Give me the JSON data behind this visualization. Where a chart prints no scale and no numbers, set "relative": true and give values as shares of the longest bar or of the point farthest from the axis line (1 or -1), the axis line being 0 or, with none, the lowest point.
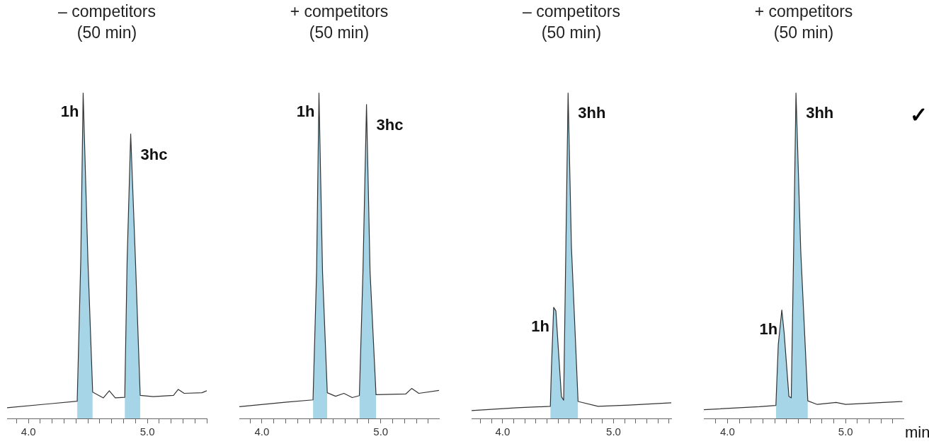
{
  "chart_data": [
    {
      "type": "line",
      "title": "– competitors",
      "subtitle": "(50 min)",
      "relative": true,
      "xlim": [
        3.82,
        5.5
      ],
      "xticks": [
        {
          "value": 3.9,
          "label": null
        },
        {
          "value": 4.0,
          "label": "4.0"
        },
        {
          "value": 4.1,
          "label": null
        },
        {
          "value": 4.2,
          "label": null
        },
        {
          "value": 4.3,
          "label": null
        },
        {
          "value": 4.4,
          "label": null
        },
        {
          "value": 4.5,
          "label": null
        },
        {
          "value": 4.6,
          "label": null
        },
        {
          "value": 4.7,
          "label": null
        },
        {
          "value": 4.8,
          "label": null
        },
        {
          "value": 4.9,
          "label": null
        },
        {
          "value": 5.0,
          "label": "5.0"
        },
        {
          "value": 5.1,
          "label": null
        },
        {
          "value": 5.2,
          "label": null
        },
        {
          "value": 5.3,
          "label": null
        },
        {
          "value": 5.4,
          "label": null
        },
        {
          "value": 5.5,
          "label": null
        }
      ],
      "series": [
        {
          "type": "line",
          "color": "#333333",
          "x": [
            3.82,
            4.18,
            4.41,
            4.44,
            4.46,
            4.5,
            4.54,
            4.63,
            4.68,
            4.73,
            4.81,
            4.83,
            4.86,
            4.9,
            4.94,
            5.05,
            5.22,
            5.26,
            5.31,
            5.46,
            5.5
          ],
          "values": [
            0.033,
            0.045,
            0.053,
            0.486,
            1.0,
            0.486,
            0.081,
            0.063,
            0.085,
            0.063,
            0.065,
            0.485,
            0.873,
            0.485,
            0.071,
            0.067,
            0.071,
            0.089,
            0.077,
            0.079,
            0.085
          ]
        },
        {
          "type": "area",
          "color": "#a6d5e8",
          "x": [
            4.41,
            4.44,
            4.46,
            4.5,
            4.54,
            4.63,
            4.81,
            4.83,
            4.86,
            4.9,
            4.94
          ],
          "values": [
            0.053,
            0.486,
            1.0,
            0.486,
            0.081,
            null,
            0.065,
            0.485,
            0.873,
            0.485,
            0.071
          ]
        }
      ],
      "annotations": [
        {
          "text": "1h",
          "x": 4.46,
          "y": 1.0
        },
        {
          "text": "3hc",
          "x": 4.86,
          "y": 0.873
        }
      ]
    },
    {
      "type": "line",
      "title": "+ competitors",
      "subtitle": "(50 min)",
      "relative": true,
      "xlim": [
        3.81,
        5.49
      ],
      "xticks": [
        {
          "value": 3.9,
          "label": null
        },
        {
          "value": 4.0,
          "label": "4.0"
        },
        {
          "value": 4.1,
          "label": null
        },
        {
          "value": 4.2,
          "label": null
        },
        {
          "value": 4.3,
          "label": null
        },
        {
          "value": 4.4,
          "label": null
        },
        {
          "value": 4.5,
          "label": null
        },
        {
          "value": 4.6,
          "label": null
        },
        {
          "value": 4.7,
          "label": null
        },
        {
          "value": 4.8,
          "label": null
        },
        {
          "value": 4.9,
          "label": null
        },
        {
          "value": 5.0,
          "label": "5.0"
        },
        {
          "value": 5.1,
          "label": null
        },
        {
          "value": 5.2,
          "label": null
        },
        {
          "value": 5.3,
          "label": null
        },
        {
          "value": 5.4,
          "label": null
        }
      ],
      "series": [
        {
          "type": "line",
          "color": "#333333",
          "x": [
            3.81,
            4.21,
            4.43,
            4.46,
            4.48,
            4.51,
            4.55,
            4.62,
            4.69,
            4.76,
            4.82,
            4.85,
            4.88,
            4.91,
            4.96,
            5.21,
            5.26,
            5.32,
            5.49
          ],
          "values": [
            0.036,
            0.05,
            0.057,
            0.45,
            1.0,
            0.45,
            0.079,
            0.068,
            0.077,
            0.064,
            0.07,
            0.45,
            0.964,
            0.45,
            0.073,
            0.075,
            0.092,
            0.077,
            0.086
          ]
        },
        {
          "type": "area",
          "color": "#a6d5e8",
          "x": [
            4.43,
            4.46,
            4.48,
            4.51,
            4.55,
            4.62,
            4.82,
            4.85,
            4.88,
            4.91,
            4.96
          ],
          "values": [
            0.057,
            0.45,
            1.0,
            0.45,
            0.079,
            null,
            0.07,
            0.45,
            0.964,
            0.45,
            0.073
          ]
        }
      ],
      "annotations": [
        {
          "text": "1h",
          "x": 4.48,
          "y": 1.0
        },
        {
          "text": "3hc",
          "x": 4.88,
          "y": 0.964
        }
      ]
    },
    {
      "type": "line",
      "title": "– competitors",
      "subtitle": "(50 min)",
      "relative": true,
      "xlim": [
        3.72,
        5.52
      ],
      "xticks": [
        {
          "value": 3.8,
          "label": null
        },
        {
          "value": 3.9,
          "label": null
        },
        {
          "value": 4.0,
          "label": "4.0"
        },
        {
          "value": 4.1,
          "label": null
        },
        {
          "value": 4.2,
          "label": null
        },
        {
          "value": 4.3,
          "label": null
        },
        {
          "value": 4.4,
          "label": null
        },
        {
          "value": 4.5,
          "label": null
        },
        {
          "value": 4.6,
          "label": null
        },
        {
          "value": 4.7,
          "label": null
        },
        {
          "value": 4.8,
          "label": null
        },
        {
          "value": 4.9,
          "label": null
        },
        {
          "value": 5.0,
          "label": "5.0"
        },
        {
          "value": 5.1,
          "label": null
        },
        {
          "value": 5.2,
          "label": null
        },
        {
          "value": 5.3,
          "label": null
        },
        {
          "value": 5.4,
          "label": null
        },
        {
          "value": 5.5,
          "label": null
        }
      ],
      "series": [
        {
          "type": "line",
          "color": "#333333",
          "x": [
            3.72,
            4.13,
            4.43,
            4.44,
            4.46,
            4.48,
            4.53,
            4.55,
            4.57,
            4.59,
            4.62,
            4.68,
            4.86,
            5.14,
            5.52
          ],
          "values": [
            0.024,
            0.033,
            0.037,
            0.156,
            0.341,
            0.33,
            0.067,
            0.056,
            0.527,
            1.0,
            0.527,
            0.052,
            0.037,
            0.041,
            0.048
          ]
        },
        {
          "type": "area",
          "color": "#a6d5e8",
          "x": [
            4.43,
            4.44,
            4.46,
            4.48,
            4.53,
            4.55,
            4.57,
            4.59,
            4.62,
            4.68
          ],
          "values": [
            0.037,
            0.156,
            0.341,
            0.33,
            0.067,
            0.056,
            0.527,
            1.0,
            0.527,
            0.052
          ]
        }
      ],
      "annotations": [
        {
          "text": "1h",
          "x": 4.46,
          "y": 0.341
        },
        {
          "text": "3hh",
          "x": 4.59,
          "y": 1.0
        }
      ]
    },
    {
      "type": "line",
      "title": "+ competitors",
      "subtitle": "(50 min)",
      "xlabel": "min",
      "relative": true,
      "xlim": [
        3.8,
        5.49
      ],
      "xticks": [
        {
          "value": 3.9,
          "label": null
        },
        {
          "value": 4.0,
          "label": "4.0"
        },
        {
          "value": 4.1,
          "label": null
        },
        {
          "value": 4.2,
          "label": null
        },
        {
          "value": 4.3,
          "label": null
        },
        {
          "value": 4.4,
          "label": null
        },
        {
          "value": 4.5,
          "label": null
        },
        {
          "value": 4.6,
          "label": null
        },
        {
          "value": 4.7,
          "label": null
        },
        {
          "value": 4.8,
          "label": null
        },
        {
          "value": 4.9,
          "label": null
        },
        {
          "value": 5.0,
          "label": "5.0"
        },
        {
          "value": 5.1,
          "label": null
        },
        {
          "value": 5.2,
          "label": null
        },
        {
          "value": 5.3,
          "label": null
        },
        {
          "value": 5.4,
          "label": null
        }
      ],
      "series": [
        {
          "type": "line",
          "color": "#333333",
          "x": [
            3.8,
            4.27,
            4.41,
            4.43,
            4.46,
            4.48,
            4.52,
            4.54,
            4.56,
            4.58,
            4.62,
            4.68,
            4.76,
            4.92,
            5.0,
            5.48
          ],
          "values": [
            0.027,
            0.036,
            0.04,
            0.226,
            0.333,
            0.262,
            0.068,
            0.063,
            0.516,
            1.0,
            0.516,
            0.054,
            0.043,
            0.049,
            0.043,
            0.052
          ]
        },
        {
          "type": "area",
          "color": "#a6d5e8",
          "x": [
            4.41,
            4.43,
            4.46,
            4.48,
            4.52,
            4.54,
            4.56,
            4.58,
            4.62,
            4.68
          ],
          "values": [
            0.04,
            0.226,
            0.333,
            0.262,
            0.068,
            0.063,
            0.516,
            1.0,
            0.516,
            0.054
          ]
        }
      ],
      "annotations": [
        {
          "text": "1h",
          "x": 4.46,
          "y": 0.333
        },
        {
          "text": "3hh",
          "x": 4.58,
          "y": 1.0
        },
        "✓"
      ]
    }
  ]
}
